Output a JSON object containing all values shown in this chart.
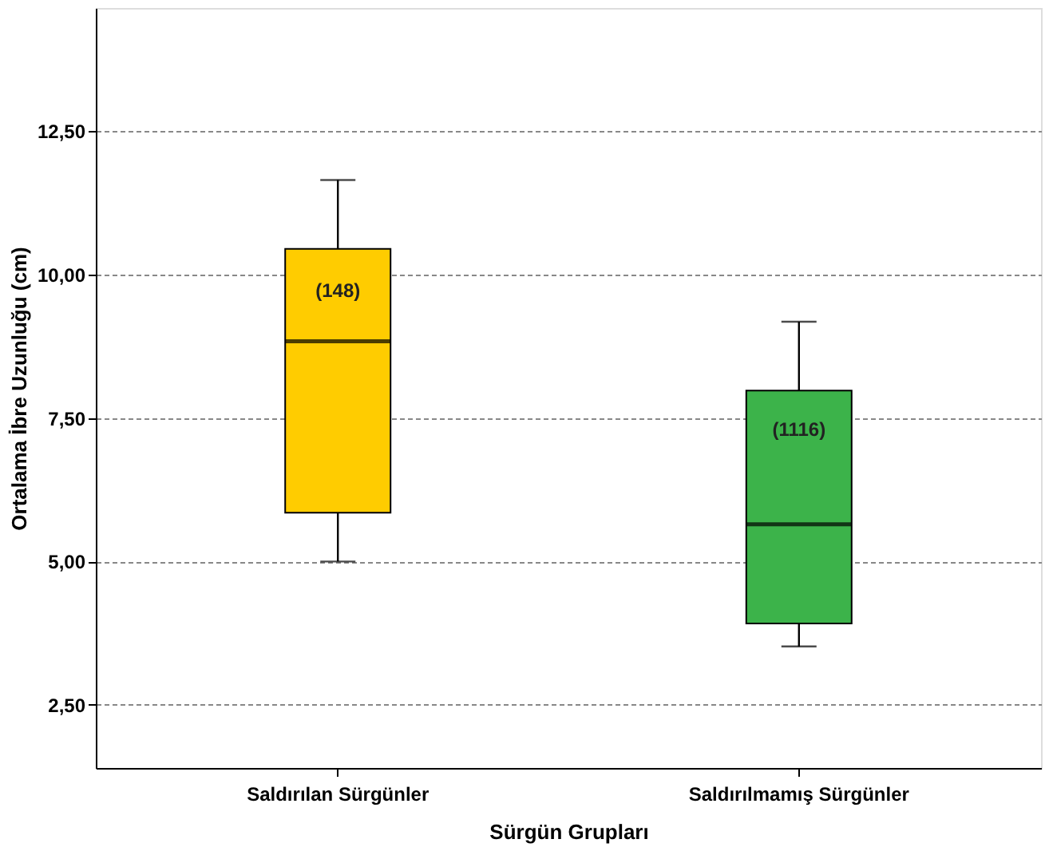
{
  "chart_data": {
    "type": "box",
    "xlabel": "Sürgün Grupları",
    "ylabel": "Ortalama İbre Uzunluğu (cm)",
    "categories": [
      "Saldırılan Sürgünler",
      "Saldırılmamış Sürgünler"
    ],
    "boxes": [
      {
        "low": 5.0,
        "q1": 5.85,
        "median": 8.84,
        "q3": 10.45,
        "high": 11.65
      },
      {
        "low": 3.52,
        "q1": 3.92,
        "median": 5.65,
        "q3": 7.98,
        "high": 9.18
      }
    ],
    "colors": [
      "#ffcc00",
      "#3cb34a"
    ],
    "ylim": [
      1.4,
      14.65
    ],
    "yticks": [
      {
        "value": 2.5,
        "label": "2,50"
      },
      {
        "value": 5,
        "label": "5,00"
      },
      {
        "value": 7.5,
        "label": "7,50"
      },
      {
        "value": 10,
        "label": "10,00"
      },
      {
        "value": 12.5,
        "label": "12,50"
      }
    ],
    "grid": "y",
    "annotations": [
      {
        "text": "(148)",
        "x": "Saldırılan Sürgünler",
        "y": 9.72
      },
      {
        "text": "(1116)",
        "x": "Saldırılmamış Sürgünler",
        "y": 7.3
      }
    ]
  }
}
